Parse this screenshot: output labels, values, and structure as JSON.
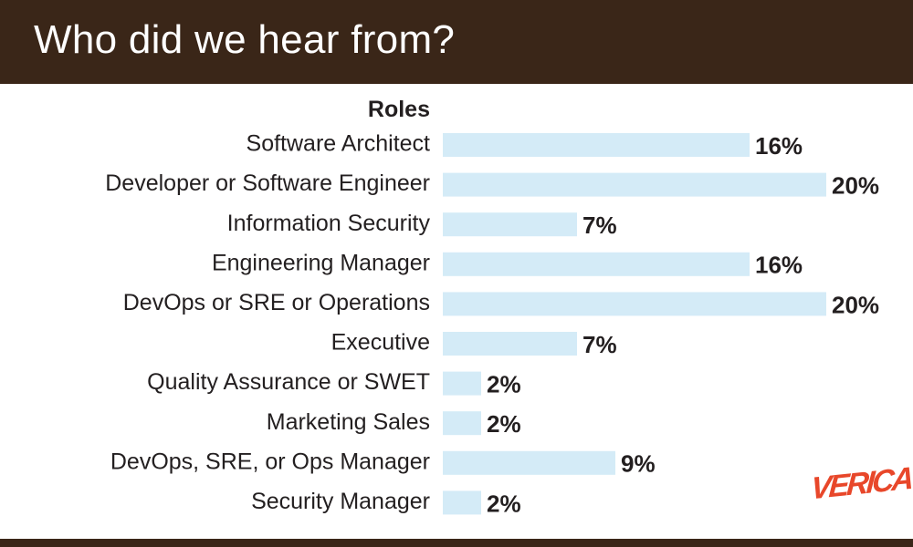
{
  "header": {
    "title": "Who did we hear from?"
  },
  "brand": {
    "logo_text": "VERICA",
    "logo_color": "#e8472a"
  },
  "colors": {
    "header_bg": "#3a2618",
    "bar": "#d4ebf7",
    "text": "#231f20"
  },
  "chart_data": {
    "type": "bar",
    "orientation": "horizontal",
    "title": "",
    "category_axis_title": "Roles",
    "categories": [
      "Software Architect",
      "Developer or Software Engineer",
      "Information Security",
      "Engineering Manager",
      "DevOps or SRE or Operations",
      "Executive",
      "Quality Assurance or SWET",
      "Marketing Sales",
      "DevOps, SRE, or Ops Manager",
      "Security Manager"
    ],
    "values": [
      16,
      20,
      7,
      16,
      20,
      7,
      2,
      2,
      9,
      2
    ],
    "value_labels": [
      "16%",
      "20%",
      "7%",
      "16%",
      "20%",
      "7%",
      "2%",
      "2%",
      "9%",
      "2%"
    ],
    "unit": "%",
    "xlim": [
      0,
      20
    ],
    "grid": false,
    "legend": "none"
  }
}
